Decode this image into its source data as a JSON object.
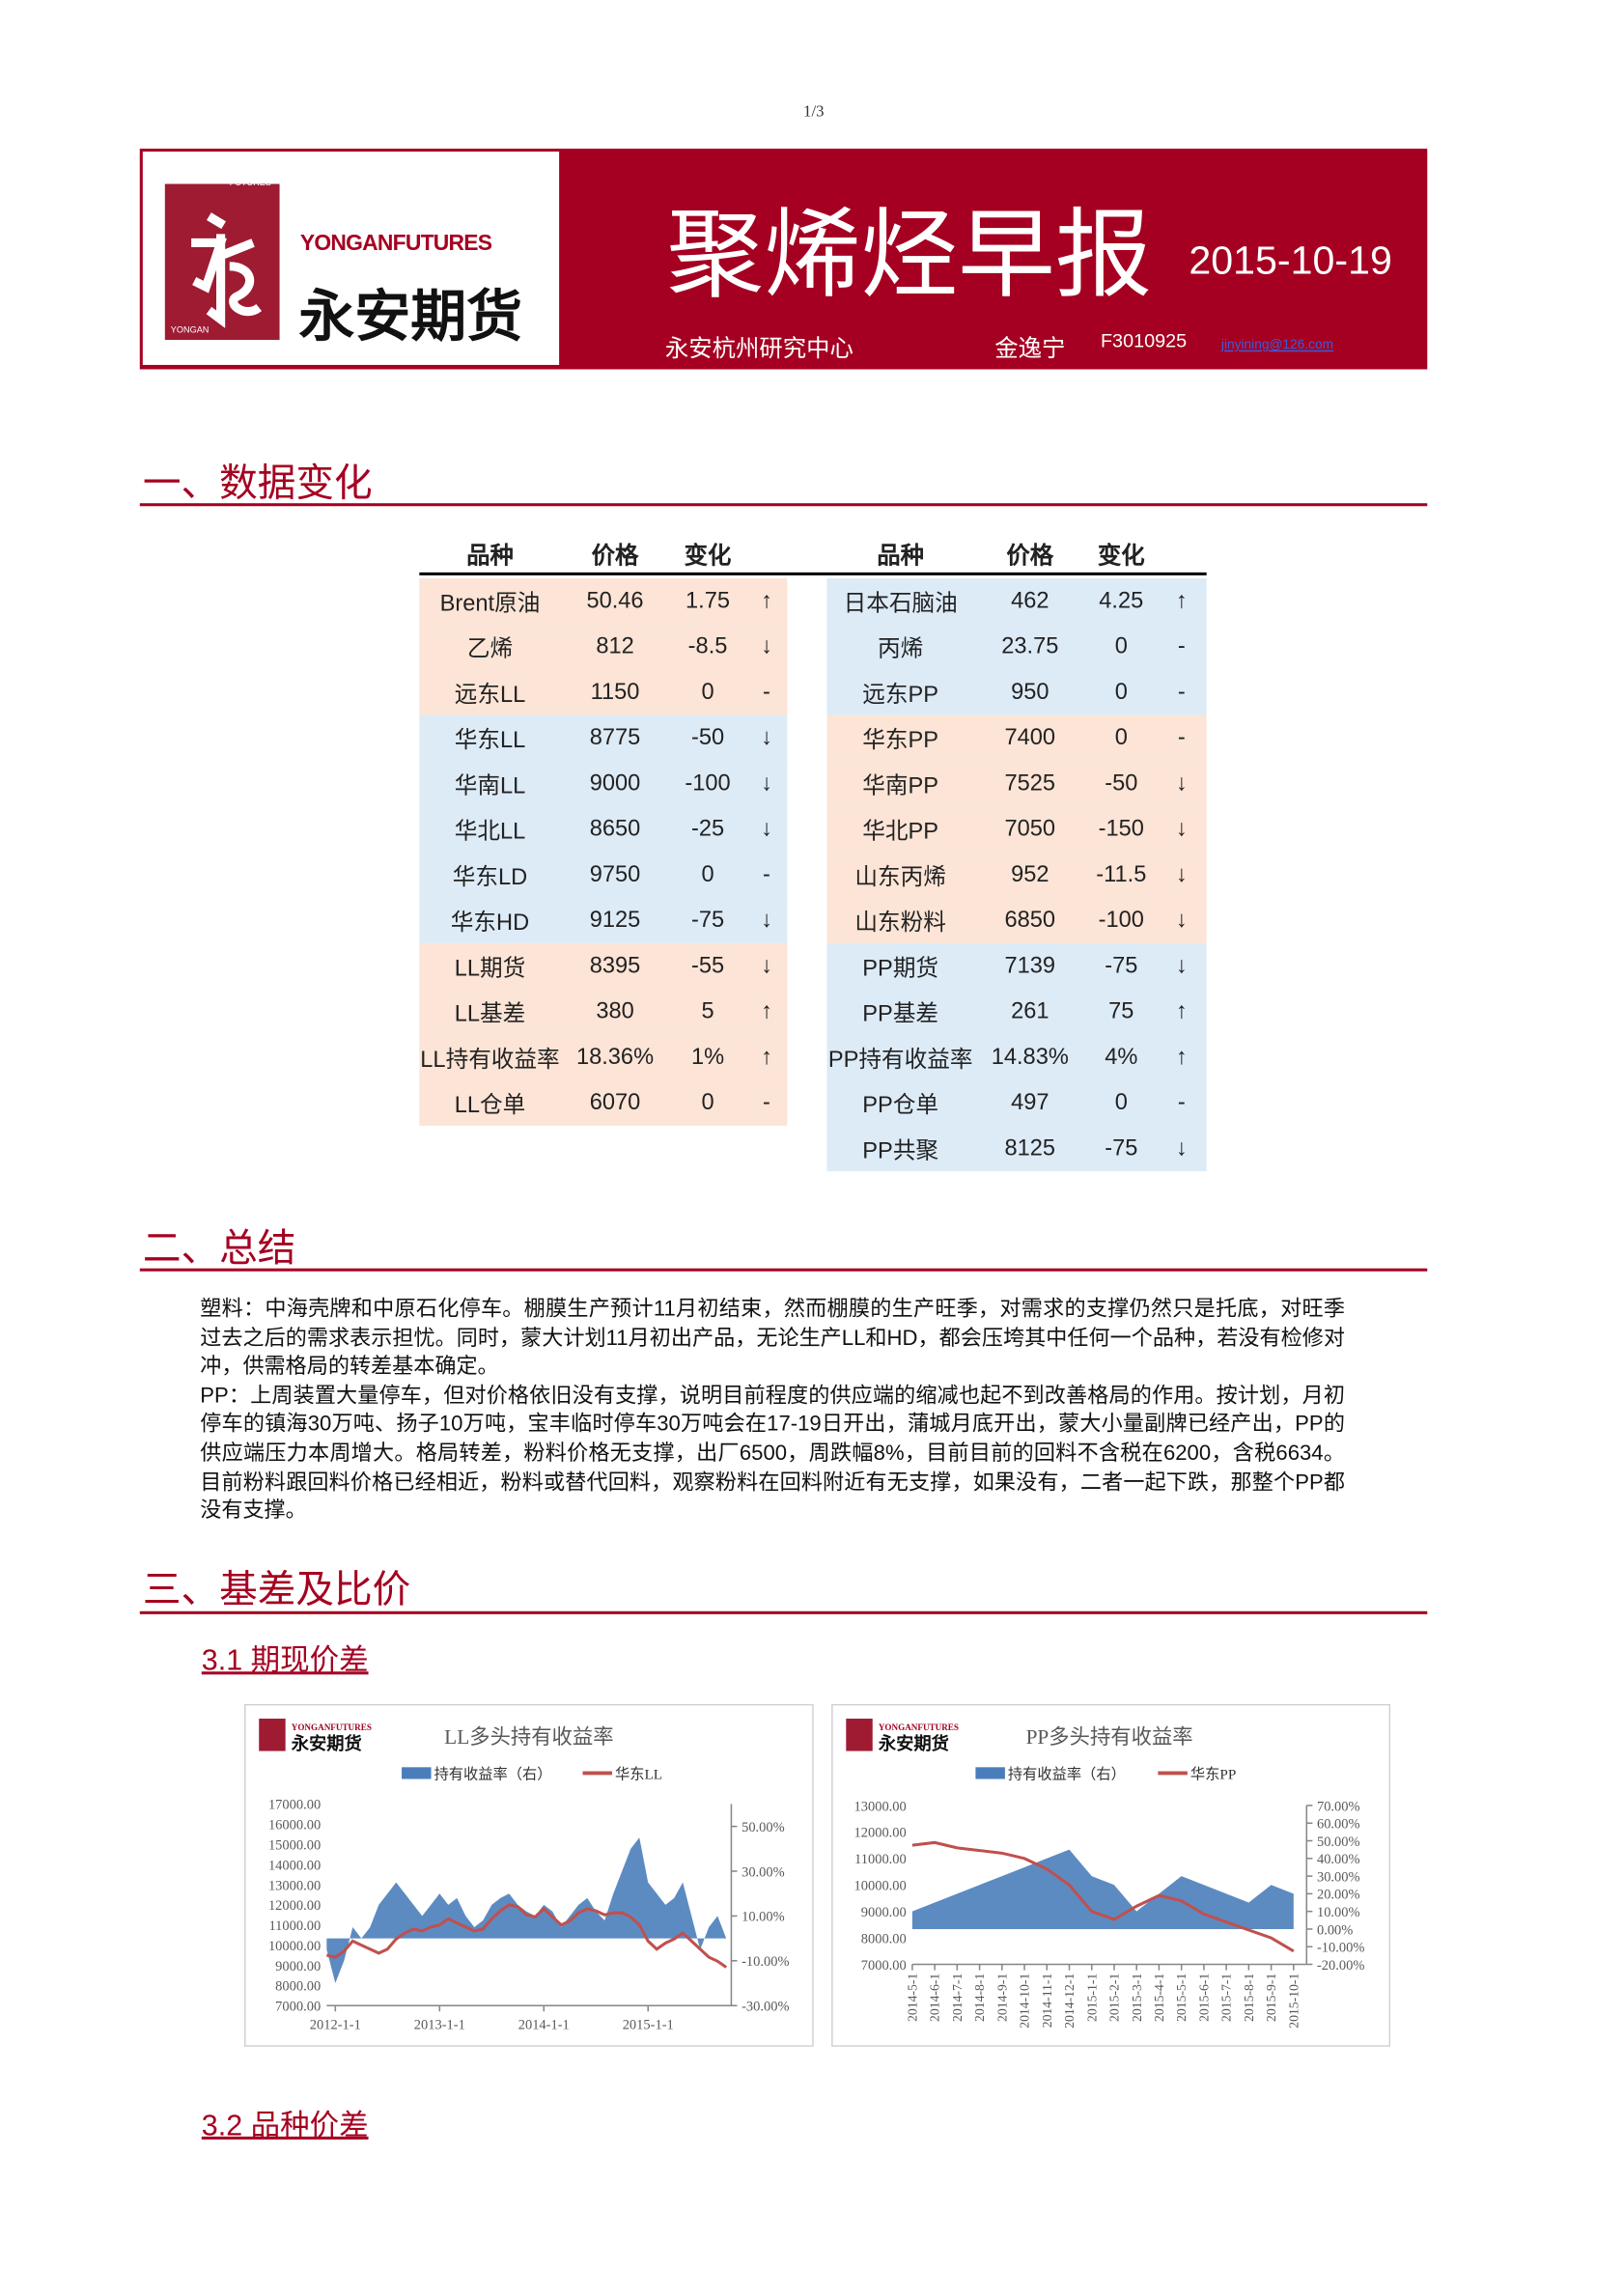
{
  "page_number": "1/3",
  "header": {
    "logo_top": "FUTURES",
    "logo_bottom": "YONGAN",
    "logo_en": "YONGANFUTURES",
    "logo_cn": "永安期货",
    "title": "聚烯烃早报",
    "date": "2015-10-19",
    "org": "永安杭州研究中心",
    "author": "金逸宁",
    "license": "F3010925",
    "email": "jinyining@126.com"
  },
  "section1": {
    "title": "一、数据变化",
    "tables": [
      {
        "headers": [
          "品种",
          "价格",
          "变化"
        ],
        "rows": [
          {
            "cells": [
              "Brent原油",
              "50.46",
              "1.75",
              "↑"
            ],
            "color": "#fce4d6"
          },
          {
            "cells": [
              "乙烯",
              "812",
              "-8.5",
              "↓"
            ],
            "color": "#fce4d6"
          },
          {
            "cells": [
              "远东LL",
              "1150",
              "0",
              "-"
            ],
            "color": "#fce4d6"
          },
          {
            "cells": [
              "华东LL",
              "8775",
              "-50",
              "↓"
            ],
            "color": "#ddebf7"
          },
          {
            "cells": [
              "华南LL",
              "9000",
              "-100",
              "↓"
            ],
            "color": "#ddebf7"
          },
          {
            "cells": [
              "华北LL",
              "8650",
              "-25",
              "↓"
            ],
            "color": "#ddebf7"
          },
          {
            "cells": [
              "华东LD",
              "9750",
              "0",
              "-"
            ],
            "color": "#ddebf7"
          },
          {
            "cells": [
              "华东HD",
              "9125",
              "-75",
              "↓"
            ],
            "color": "#ddebf7"
          },
          {
            "cells": [
              "LL期货",
              "8395",
              "-55",
              "↓"
            ],
            "color": "#fce4d6"
          },
          {
            "cells": [
              "LL基差",
              "380",
              "5",
              "↑"
            ],
            "color": "#fce4d6"
          },
          {
            "cells": [
              "LL持有收益率",
              "18.36%",
              "1%",
              "↑"
            ],
            "color": "#fce4d6"
          },
          {
            "cells": [
              "LL仓单",
              "6070",
              "0",
              "-"
            ],
            "color": "#fce4d6"
          }
        ]
      },
      {
        "headers": [
          "品种",
          "价格",
          "变化"
        ],
        "rows": [
          {
            "cells": [
              "日本石脑油",
              "462",
              "4.25",
              "↑"
            ],
            "color": "#ddebf7"
          },
          {
            "cells": [
              "丙烯",
              "23.75",
              "0",
              "-"
            ],
            "color": "#ddebf7"
          },
          {
            "cells": [
              "远东PP",
              "950",
              "0",
              "-"
            ],
            "color": "#ddebf7"
          },
          {
            "cells": [
              "华东PP",
              "7400",
              "0",
              "-"
            ],
            "color": "#fce4d6"
          },
          {
            "cells": [
              "华南PP",
              "7525",
              "-50",
              "↓"
            ],
            "color": "#fce4d6"
          },
          {
            "cells": [
              "华北PP",
              "7050",
              "-150",
              "↓"
            ],
            "color": "#fce4d6"
          },
          {
            "cells": [
              "山东丙烯",
              "952",
              "-11.5",
              "↓"
            ],
            "color": "#fce4d6"
          },
          {
            "cells": [
              "山东粉料",
              "6850",
              "-100",
              "↓"
            ],
            "color": "#fce4d6"
          },
          {
            "cells": [
              "PP期货",
              "7139",
              "-75",
              "↓"
            ],
            "color": "#ddebf7"
          },
          {
            "cells": [
              "PP基差",
              "261",
              "75",
              "↑"
            ],
            "color": "#ddebf7"
          },
          {
            "cells": [
              "PP持有收益率",
              "14.83%",
              "4%",
              "↑"
            ],
            "color": "#ddebf7"
          },
          {
            "cells": [
              "PP仓单",
              "497",
              "0",
              "-"
            ],
            "color": "#ddebf7"
          },
          {
            "cells": [
              "PP共聚",
              "8125",
              "-75",
              "↓"
            ],
            "color": "#ddebf7"
          }
        ]
      }
    ]
  },
  "section2": {
    "title": "二、总结",
    "paragraphs": [
      "塑料：中海壳牌和中原石化停车。棚膜生产预计11月初结束，然而棚膜的生产旺季，对需求的支撑仍然只是托底，对旺季过去之后的需求表示担忧。同时，蒙大计划11月初出产品，无论生产LL和HD，都会压垮其中任何一个品种，若没有检修对冲，供需格局的转差基本确定。",
      "PP：上周装置大量停车，但对价格依旧没有支撑，说明目前程度的供应端的缩减也起不到改善格局的作用。按计划，月初停车的镇海30万吨、扬子10万吨，宝丰临时停车30万吨会在17-19日开出，蒲城月底开出，蒙大小量副牌已经产出，PP的供应端压力本周增大。格局转差，粉料价格无支撑，出厂6500，周跌幅8%，目前目前的回料不含税在6200，含税6634。目前粉料跟回料价格已经相近，粉料或替代回料，观察粉料在回料附近有无支撑，如果没有，二者一起下跌，那整个PP都没有支撑。"
    ]
  },
  "section3": {
    "title": "三、基差及比价",
    "subsections": [
      {
        "title": "3.1 期现价差"
      },
      {
        "title": "3.2 品种价差"
      }
    ]
  },
  "chart_data": [
    {
      "type": "combo",
      "title": "LL多头持有收益率",
      "x": [
        "2011-12-1",
        "2012-1-1",
        "2012-2-1",
        "2012-3-1",
        "2012-4-1",
        "2012-5-1",
        "2012-6-1",
        "2012-7-1",
        "2012-8-1",
        "2012-9-1",
        "2012-10-1",
        "2012-11-1",
        "2012-12-1",
        "2013-1-1",
        "2013-2-1",
        "2013-3-1",
        "2013-4-1",
        "2013-5-1",
        "2013-6-1",
        "2013-7-1",
        "2013-8-1",
        "2013-9-1",
        "2013-10-1",
        "2013-11-1",
        "2013-12-1",
        "2014-1-1",
        "2014-2-1",
        "2014-3-1",
        "2014-4-1",
        "2014-5-1",
        "2014-6-1",
        "2014-7-1",
        "2014-8-1",
        "2014-9-1",
        "2014-10-1",
        "2014-11-1",
        "2014-12-1",
        "2015-1-1",
        "2015-2-1",
        "2015-3-1",
        "2015-4-1",
        "2015-5-1",
        "2015-6-1",
        "2015-7-1",
        "2015-8-1",
        "2015-9-1",
        "2015-10-1"
      ],
      "xlim": [
        "2011-12-1",
        "2015-10-19"
      ],
      "xticks": [
        "2012-1-1",
        "2013-1-1",
        "2014-1-1",
        "2015-1-1"
      ],
      "series": [
        {
          "name": "持有收益率（右）",
          "color": "#4a7ebb",
          "axis": "y2",
          "kind": "area",
          "values": [
            -5,
            -20,
            -10,
            5,
            0,
            5,
            15,
            20,
            25,
            20,
            15,
            10,
            15,
            20,
            15,
            18,
            10,
            5,
            8,
            15,
            18,
            20,
            15,
            12,
            10,
            15,
            12,
            5,
            10,
            15,
            18,
            12,
            8,
            20,
            30,
            40,
            45,
            25,
            20,
            15,
            18,
            25,
            10,
            -5,
            5,
            10,
            0
          ]
        },
        {
          "name": "华东LL",
          "color": "#c0504d",
          "kind": "line",
          "values": [
            9500,
            9400,
            9700,
            10200,
            10000,
            9800,
            9600,
            9800,
            10300,
            10600,
            10800,
            10700,
            10900,
            11000,
            11300,
            11100,
            10900,
            10700,
            10800,
            11300,
            11700,
            12000,
            11900,
            11500,
            11400,
            11800,
            11400,
            11000,
            11200,
            11600,
            11800,
            11700,
            11500,
            11600,
            11600,
            11400,
            11000,
            10200,
            9800,
            10100,
            10300,
            10600,
            10200,
            9800,
            9400,
            9200,
            8900
          ]
        }
      ],
      "ylim": [
        7000,
        17000
      ],
      "yticks": [
        {
          "value": 7000,
          "label": "7000.00"
        },
        {
          "value": 8000,
          "label": "8000.00"
        },
        {
          "value": 9000,
          "label": "9000.00"
        },
        {
          "value": 10000,
          "label": "10000.00"
        },
        {
          "value": 11000,
          "label": "11000.00"
        },
        {
          "value": 12000,
          "label": "12000.00"
        },
        {
          "value": 13000,
          "label": "13000.00"
        },
        {
          "value": 14000,
          "label": "14000.00"
        },
        {
          "value": 15000,
          "label": "15000.00"
        },
        {
          "value": 16000,
          "label": "16000.00"
        },
        {
          "value": 17000,
          "label": "17000.00"
        }
      ],
      "y2lim": [
        -30,
        60
      ],
      "y2ticks": [
        {
          "value": -30,
          "label": "-30.00%"
        },
        {
          "value": -10,
          "label": "-10.00%"
        },
        {
          "value": 10,
          "label": "10.00%"
        },
        {
          "value": 30,
          "label": "30.00%"
        },
        {
          "value": 50,
          "label": "50.00%"
        }
      ]
    },
    {
      "type": "combo",
      "title": "PP多头持有收益率",
      "x": [
        "2014-5-1",
        "2014-6-1",
        "2014-7-1",
        "2014-8-1",
        "2014-9-1",
        "2014-10-1",
        "2014-11-1",
        "2014-12-1",
        "2015-1-1",
        "2015-2-1",
        "2015-3-1",
        "2015-4-1",
        "2015-5-1",
        "2015-6-1",
        "2015-7-1",
        "2015-8-1",
        "2015-9-1",
        "2015-10-1"
      ],
      "xlim": [
        "2014-5-1",
        "2015-10-19"
      ],
      "xticks": [
        "2014-5-1",
        "2014-6-1",
        "2014-7-1",
        "2014-8-1",
        "2014-9-1",
        "2014-10-1",
        "2014-11-1",
        "2014-12-1",
        "2015-1-1",
        "2015-2-1",
        "2015-3-1",
        "2015-4-1",
        "2015-5-1",
        "2015-6-1",
        "2015-7-1",
        "2015-8-1",
        "2015-9-1",
        "2015-10-1"
      ],
      "series": [
        {
          "name": "持有收益率（右）",
          "color": "#4a7ebb",
          "axis": "y2",
          "kind": "area",
          "values": [
            10,
            15,
            20,
            25,
            30,
            35,
            40,
            45,
            30,
            25,
            10,
            20,
            30,
            25,
            20,
            15,
            25,
            20
          ]
        },
        {
          "name": "华东PP",
          "color": "#c0504d",
          "kind": "line",
          "values": [
            11500,
            11600,
            11400,
            11300,
            11200,
            11000,
            10600,
            10000,
            9000,
            8700,
            9200,
            9600,
            9400,
            8900,
            8600,
            8300,
            8000,
            7500
          ]
        }
      ],
      "ylim": [
        7000,
        13000
      ],
      "yticks": [
        {
          "value": 7000,
          "label": "7000.00"
        },
        {
          "value": 8000,
          "label": "8000.00"
        },
        {
          "value": 9000,
          "label": "9000.00"
        },
        {
          "value": 10000,
          "label": "10000.00"
        },
        {
          "value": 11000,
          "label": "11000.00"
        },
        {
          "value": 12000,
          "label": "12000.00"
        },
        {
          "value": 13000,
          "label": "13000.00"
        }
      ],
      "y2lim": [
        -20,
        70
      ],
      "y2ticks": [
        {
          "value": -20,
          "label": "-20.00%"
        },
        {
          "value": -10,
          "label": "-10.00%"
        },
        {
          "value": 0,
          "label": "0.00%"
        },
        {
          "value": 10,
          "label": "10.00%"
        },
        {
          "value": 20,
          "label": "20.00%"
        },
        {
          "value": 30,
          "label": "30.00%"
        },
        {
          "value": 40,
          "label": "40.00%"
        },
        {
          "value": 50,
          "label": "50.00%"
        },
        {
          "value": 60,
          "label": "60.00%"
        },
        {
          "value": 70,
          "label": "70.00%"
        }
      ]
    }
  ]
}
